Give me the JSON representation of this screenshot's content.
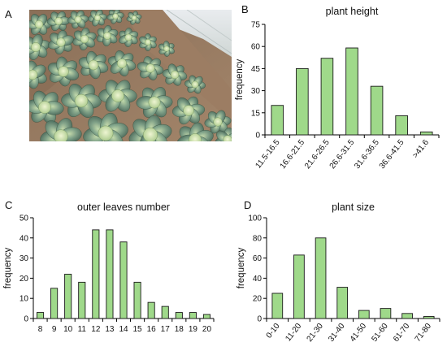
{
  "panel_labels": [
    "A",
    "B",
    "C",
    "D"
  ],
  "photo": {
    "icon": "cabbage-field-photo"
  },
  "colors": {
    "bar_fill": "#9fd98a",
    "bar_stroke": "#1a1a1a"
  },
  "chart_data": [
    {
      "label": "B",
      "type": "bar",
      "title": "plant height",
      "xlabel": "",
      "ylabel": "frequency",
      "categories": [
        "11.5-16.5",
        "16.6-21.5",
        "21.6-26.5",
        "26.6-31.5",
        "31.6-36.5",
        "36.6-41.5",
        ">41.6"
      ],
      "values": [
        20,
        45,
        52,
        59,
        33,
        13,
        2
      ],
      "ylim": [
        0,
        75
      ],
      "yticks": [
        0,
        15,
        30,
        45,
        60,
        75
      ],
      "rotate_xticks": true
    },
    {
      "label": "C",
      "type": "bar",
      "title": "outer leaves number",
      "xlabel": "",
      "ylabel": "frequency",
      "categories": [
        "8",
        "9",
        "10",
        "11",
        "12",
        "13",
        "14",
        "15",
        "16",
        "17",
        "18",
        "19",
        "20"
      ],
      "values": [
        3,
        15,
        22,
        18,
        44,
        44,
        38,
        18,
        8,
        6,
        3,
        3,
        2
      ],
      "ylim": [
        0,
        50
      ],
      "yticks": [
        0,
        10,
        20,
        30,
        40,
        50
      ],
      "rotate_xticks": false
    },
    {
      "label": "D",
      "type": "bar",
      "title": "plant size",
      "xlabel": "",
      "ylabel": "frequency",
      "categories": [
        "0-10",
        "11-20",
        "21-30",
        "31-40",
        "41-50",
        "51-60",
        "61-70",
        "71-80"
      ],
      "values": [
        25,
        63,
        80,
        31,
        8,
        10,
        5,
        2
      ],
      "ylim": [
        0,
        100
      ],
      "yticks": [
        0,
        20,
        40,
        60,
        80,
        100
      ],
      "rotate_xticks": true
    }
  ]
}
